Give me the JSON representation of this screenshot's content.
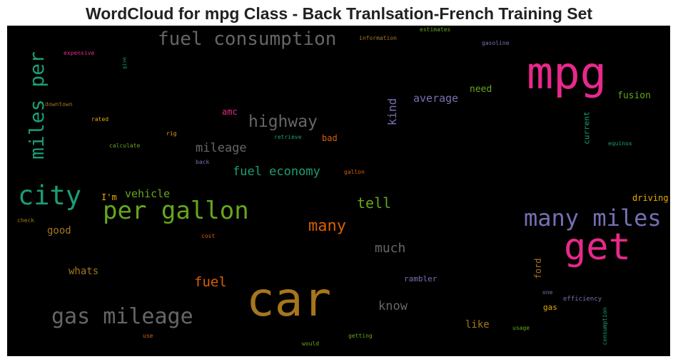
{
  "title": "WordCloud for mpg Class - Back Tranlsation-French Training Set",
  "colors": {
    "pink": "#e7298a",
    "teal": "#1b9e77",
    "olive": "#66a61e",
    "gold": "#a6761d",
    "purple": "#7570b3",
    "orange": "#d95f02",
    "grey": "#666666",
    "yellow": "#e6ab02"
  },
  "words": {
    "car": "car",
    "mpg": "mpg",
    "get": "get",
    "city": "city",
    "per_gallon": "per gallon",
    "many_miles": "many miles",
    "gas_mileage": "gas mileage",
    "miles_per": "miles per",
    "fuel_consumption": "fuel consumption",
    "highway": "highway",
    "many": "many",
    "mileage": "mileage",
    "fuel_economy": "fuel economy",
    "tell": "tell",
    "much": "much",
    "fuel": "fuel",
    "know": "know",
    "vehicle": "vehicle",
    "average": "average",
    "kind": "kind",
    "good": "good",
    "whats": "whats",
    "like": "like",
    "need": "need",
    "fusion": "fusion",
    "current": "current",
    "ford": "ford",
    "im": "I'm",
    "amc": "amc",
    "bad": "bad",
    "driving": "driving",
    "rambler": "rambler",
    "gas": "gas",
    "efficiency": "efficiency",
    "consumption": "consumption",
    "usage": "usage",
    "getting": "getting",
    "would": "would",
    "use": "use",
    "one": "one",
    "estimates": "estimates",
    "information": "information",
    "gasoline": "gasoline",
    "expensive": "expensive",
    "give": "give",
    "downtown": "downtown",
    "rated": "rated",
    "rig": "rig",
    "retrieve": "retrieve",
    "calculate": "calculate",
    "back": "back",
    "gallon": "gallon",
    "equinox": "equinox",
    "check": "check",
    "cost": "cost"
  }
}
